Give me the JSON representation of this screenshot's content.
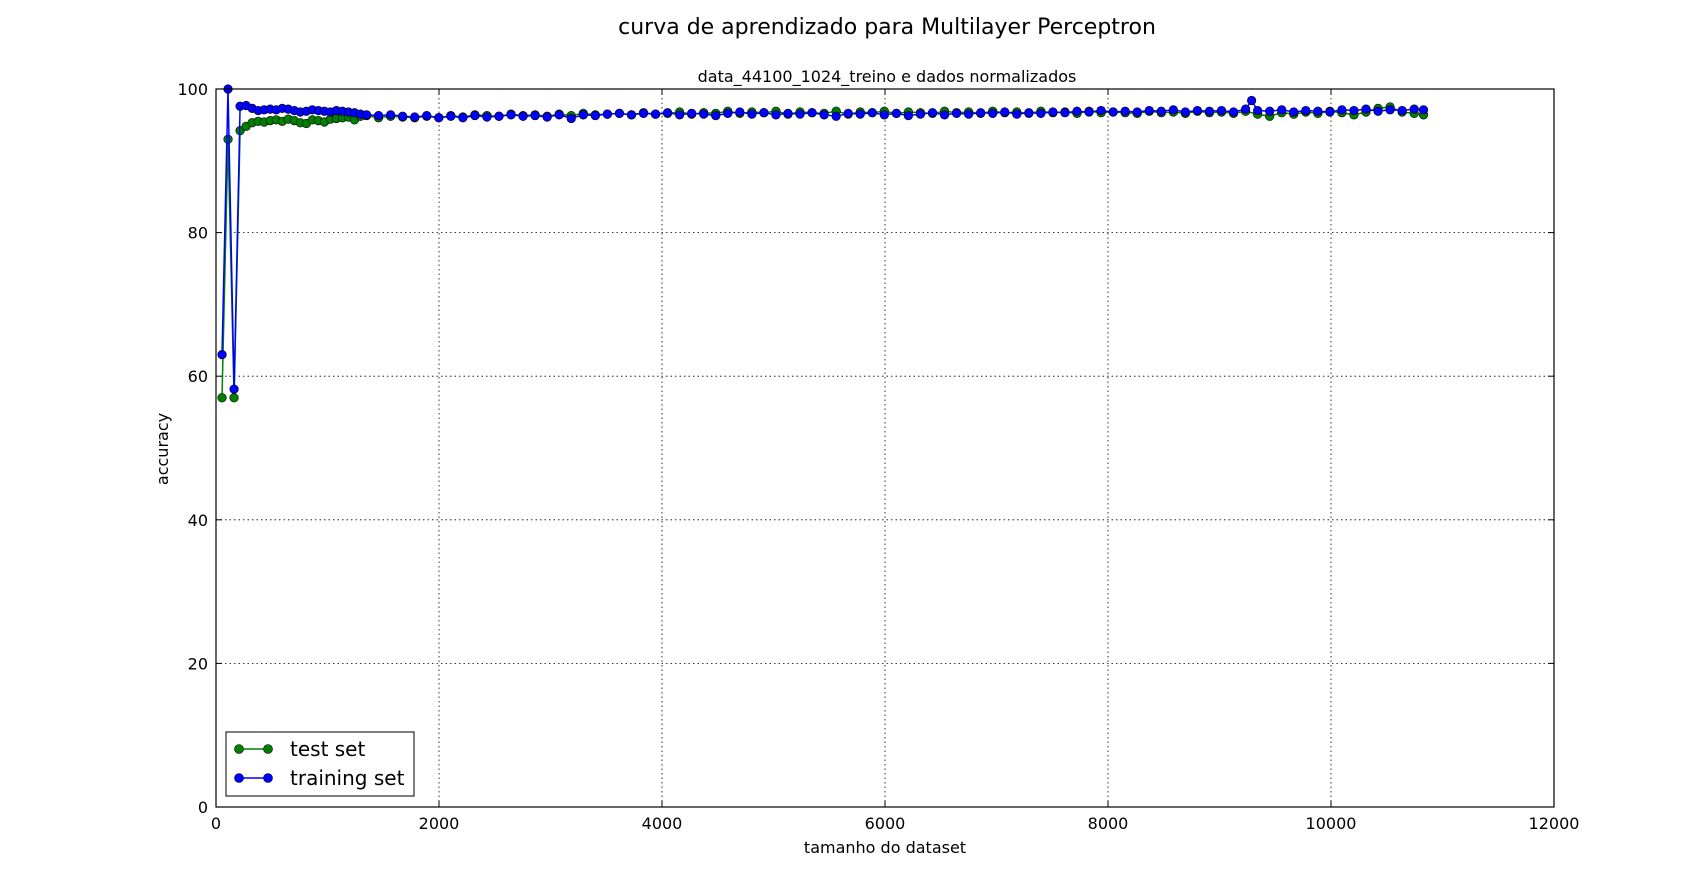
{
  "chart_data": {
    "type": "line",
    "title": "curva de aprendizado para Multilayer Perceptron",
    "subtitle": "data_44100_1024_treino e dados normalizados",
    "xlabel": "tamanho do dataset",
    "ylabel": "accuracy",
    "xlim": [
      0,
      12000
    ],
    "ylim": [
      0,
      100
    ],
    "xticks": [
      0,
      2000,
      4000,
      6000,
      8000,
      10000,
      12000
    ],
    "yticks": [
      0,
      20,
      40,
      60,
      80,
      100
    ],
    "grid": true,
    "legend_position": "lower-left",
    "colors": {
      "test": "#008000",
      "training": "#0000ff"
    },
    "series": [
      {
        "name": "test set",
        "color": "#008000",
        "x": [
          54,
          108,
          162,
          216,
          270,
          324,
          378,
          432,
          486,
          540,
          594,
          648,
          702,
          756,
          810,
          864,
          918,
          972,
          1026,
          1080,
          1134,
          1188,
          1242,
          1296,
          1350,
          1458,
          1566,
          1674,
          1782,
          1890,
          1998,
          2106,
          2214,
          2322,
          2430,
          2538,
          2646,
          2754,
          2862,
          2970,
          3078,
          3186,
          3294,
          3402,
          3510,
          3618,
          3726,
          3834,
          3942,
          4050,
          4158,
          4266,
          4374,
          4482,
          4590,
          4698,
          4806,
          4914,
          5022,
          5130,
          5238,
          5346,
          5454,
          5562,
          5670,
          5778,
          5886,
          5994,
          6102,
          6210,
          6318,
          6426,
          6534,
          6642,
          6750,
          6858,
          6966,
          7074,
          7182,
          7290,
          7398,
          7506,
          7614,
          7722,
          7830,
          7938,
          8046,
          8154,
          8262,
          8370,
          8478,
          8586,
          8694,
          8802,
          8910,
          9018,
          9126,
          9234,
          9342,
          9450,
          9558,
          9666,
          9774,
          9882,
          9990,
          10098,
          10206,
          10314,
          10422,
          10530,
          10638,
          10746,
          10830
        ],
        "y": [
          57,
          93,
          57,
          94.2,
          94.8,
          95.3,
          95.5,
          95.4,
          95.6,
          95.7,
          95.5,
          95.8,
          95.6,
          95.3,
          95.2,
          95.7,
          95.6,
          95.4,
          95.8,
          95.9,
          96.0,
          96.1,
          95.7,
          96.2,
          96.3,
          96.0,
          96.2,
          96.1,
          96.0,
          96.2,
          96.0,
          96.3,
          96.1,
          96.4,
          96.3,
          96.2,
          96.5,
          96.3,
          96.4,
          96.2,
          96.5,
          96.3,
          96.6,
          96.4,
          96.5,
          96.6,
          96.4,
          96.7,
          96.5,
          96.6,
          96.8,
          96.5,
          96.7,
          96.6,
          96.9,
          96.6,
          96.8,
          96.7,
          96.9,
          96.5,
          96.8,
          96.7,
          96.6,
          96.9,
          96.5,
          96.8,
          96.7,
          96.9,
          96.6,
          96.8,
          96.7,
          96.6,
          96.9,
          96.7,
          96.8,
          96.6,
          96.9,
          96.7,
          96.8,
          96.6,
          96.9,
          96.7,
          96.8,
          96.6,
          96.9,
          96.7,
          96.8,
          96.7,
          96.6,
          96.9,
          96.7,
          96.8,
          96.6,
          96.9,
          96.7,
          96.8,
          96.6,
          96.9,
          96.5,
          96.2,
          96.7,
          96.5,
          96.8,
          96.6,
          96.9,
          96.7,
          96.4,
          96.8,
          97.3,
          97.5,
          96.8,
          96.6,
          96.4
        ]
      },
      {
        "name": "training set",
        "color": "#0000ff",
        "x": [
          54,
          108,
          162,
          216,
          270,
          324,
          378,
          432,
          486,
          540,
          594,
          648,
          702,
          756,
          810,
          864,
          918,
          972,
          1026,
          1080,
          1134,
          1188,
          1242,
          1296,
          1350,
          1458,
          1566,
          1674,
          1782,
          1890,
          1998,
          2106,
          2214,
          2322,
          2430,
          2538,
          2646,
          2754,
          2862,
          2970,
          3078,
          3186,
          3294,
          3402,
          3510,
          3618,
          3726,
          3834,
          3942,
          4050,
          4158,
          4266,
          4374,
          4482,
          4590,
          4698,
          4806,
          4914,
          5022,
          5130,
          5238,
          5346,
          5454,
          5562,
          5670,
          5778,
          5886,
          5994,
          6102,
          6210,
          6318,
          6426,
          6534,
          6642,
          6750,
          6858,
          6966,
          7074,
          7182,
          7290,
          7398,
          7506,
          7614,
          7722,
          7830,
          7938,
          8046,
          8154,
          8262,
          8370,
          8478,
          8586,
          8694,
          8802,
          8910,
          9018,
          9126,
          9234,
          9288,
          9342,
          9450,
          9558,
          9666,
          9774,
          9882,
          9990,
          10098,
          10206,
          10314,
          10422,
          10530,
          10638,
          10746,
          10830
        ],
        "y": [
          63,
          100,
          58.2,
          97.6,
          97.7,
          97.3,
          97.0,
          97.1,
          97.2,
          97.1,
          97.3,
          97.2,
          97.0,
          96.8,
          96.9,
          97.1,
          97.0,
          96.9,
          96.8,
          97.0,
          96.9,
          96.8,
          96.7,
          96.5,
          96.4,
          96.3,
          96.4,
          96.2,
          96.1,
          96.3,
          96.0,
          96.2,
          96.0,
          96.3,
          96.1,
          96.2,
          96.4,
          96.2,
          96.3,
          96.1,
          96.4,
          95.9,
          96.4,
          96.3,
          96.5,
          96.6,
          96.4,
          96.6,
          96.5,
          96.7,
          96.4,
          96.6,
          96.5,
          96.3,
          96.6,
          96.8,
          96.5,
          96.7,
          96.4,
          96.6,
          96.5,
          96.7,
          96.4,
          96.2,
          96.6,
          96.5,
          96.7,
          96.4,
          96.6,
          96.3,
          96.5,
          96.7,
          96.4,
          96.6,
          96.5,
          96.7,
          96.6,
          96.8,
          96.5,
          96.7,
          96.6,
          96.8,
          96.7,
          96.9,
          96.8,
          97.0,
          96.8,
          96.9,
          96.8,
          97.0,
          96.9,
          97.1,
          96.8,
          97.0,
          96.9,
          97.0,
          96.8,
          97.2,
          98.4,
          97.0,
          96.9,
          97.1,
          96.8,
          97.0,
          96.9,
          96.8,
          97.1,
          97.0,
          97.2,
          96.9,
          97.1,
          97.0,
          97.2,
          97.1
        ]
      }
    ]
  }
}
